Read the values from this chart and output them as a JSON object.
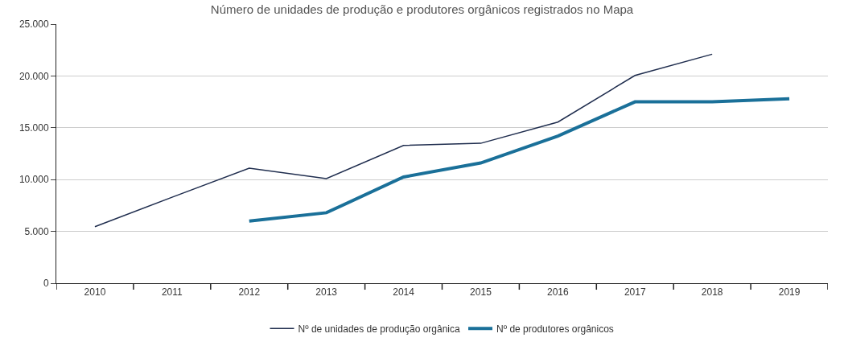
{
  "chart_data": {
    "type": "line",
    "title": "Número de unidades de produção e produtores orgânicos registrados no Mapa",
    "categories": [
      "2010",
      "2011",
      "2012",
      "2013",
      "2014",
      "2015",
      "2016",
      "2017",
      "2018",
      "2019"
    ],
    "series": [
      {
        "name": "Nº de unidades de produção orgânica",
        "color": "#1f2d4e",
        "values": [
          5450,
          8300,
          11100,
          10100,
          13300,
          13500,
          15550,
          20050,
          22100,
          null
        ]
      },
      {
        "name": "Nº de produtores orgânicos",
        "color": "#1a7099",
        "values": [
          null,
          null,
          6000,
          6800,
          10250,
          11600,
          14200,
          17500,
          17500,
          17800
        ]
      }
    ],
    "ylim": [
      0,
      25000
    ],
    "yticks": [
      {
        "value": 0,
        "label": "0"
      },
      {
        "value": 5000,
        "label": "5.000"
      },
      {
        "value": 10000,
        "label": "10.000"
      },
      {
        "value": 15000,
        "label": "15.000"
      },
      {
        "value": 20000,
        "label": "20.000"
      },
      {
        "value": 25000,
        "label": "25.000"
      }
    ],
    "grid": "y",
    "legend": "bottom",
    "marker": "none",
    "line_style": "solid"
  }
}
